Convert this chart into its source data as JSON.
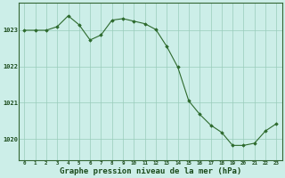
{
  "x": [
    0,
    1,
    2,
    3,
    4,
    5,
    6,
    7,
    8,
    9,
    10,
    11,
    12,
    13,
    14,
    15,
    16,
    17,
    18,
    19,
    20,
    21,
    22,
    23
  ],
  "y": [
    1023.0,
    1023.0,
    1023.0,
    1023.1,
    1023.4,
    1023.15,
    1022.73,
    1022.87,
    1023.28,
    1023.32,
    1023.25,
    1023.18,
    1023.02,
    1022.55,
    1021.98,
    1021.05,
    1020.68,
    1020.38,
    1020.18,
    1019.82,
    1019.82,
    1019.88,
    1020.22,
    1020.42
  ],
  "line_color": "#2d6a2d",
  "marker_color": "#2d6a2d",
  "bg_color": "#cceee8",
  "grid_color": "#99ccbb",
  "yticks": [
    1020,
    1021,
    1022,
    1023
  ],
  "ylim": [
    1019.4,
    1023.75
  ],
  "xlim": [
    -0.5,
    23.5
  ],
  "xlabel": "Graphe pression niveau de la mer (hPa)",
  "border_color": "#336633"
}
